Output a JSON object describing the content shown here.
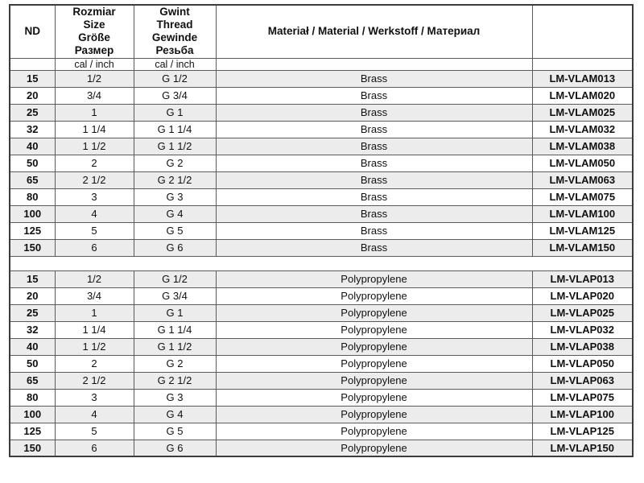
{
  "table": {
    "headers": {
      "nd": "ND",
      "size": "Rozmiar\nSize\nGröße\nРазмер",
      "thread": "Gwint\nThread\nGewinde\nРезьба",
      "material": "Materiał / Material / Werkstoff / Материал",
      "code": ""
    },
    "subheader": {
      "nd_unit": "",
      "size_unit": "cal / inch",
      "thread_unit": "cal / inch",
      "material_unit": "",
      "code_unit": ""
    },
    "sections": [
      {
        "name": "brass",
        "rows": [
          {
            "nd": "15",
            "size": "1/2",
            "thread": "G 1/2",
            "material": "Brass",
            "code": "LM-VLAM013"
          },
          {
            "nd": "20",
            "size": "3/4",
            "thread": "G 3/4",
            "material": "Brass",
            "code": "LM-VLAM020"
          },
          {
            "nd": "25",
            "size": "1",
            "thread": "G 1",
            "material": "Brass",
            "code": "LM-VLAM025"
          },
          {
            "nd": "32",
            "size": "1 1/4",
            "thread": "G 1 1/4",
            "material": "Brass",
            "code": "LM-VLAM032"
          },
          {
            "nd": "40",
            "size": "1 1/2",
            "thread": "G 1 1/2",
            "material": "Brass",
            "code": "LM-VLAM038"
          },
          {
            "nd": "50",
            "size": "2",
            "thread": "G 2",
            "material": "Brass",
            "code": "LM-VLAM050"
          },
          {
            "nd": "65",
            "size": "2 1/2",
            "thread": "G 2 1/2",
            "material": "Brass",
            "code": "LM-VLAM063"
          },
          {
            "nd": "80",
            "size": "3",
            "thread": "G 3",
            "material": "Brass",
            "code": "LM-VLAM075"
          },
          {
            "nd": "100",
            "size": "4",
            "thread": "G 4",
            "material": "Brass",
            "code": "LM-VLAM100"
          },
          {
            "nd": "125",
            "size": "5",
            "thread": "G 5",
            "material": "Brass",
            "code": "LM-VLAM125"
          },
          {
            "nd": "150",
            "size": "6",
            "thread": "G 6",
            "material": "Brass",
            "code": "LM-VLAM150"
          }
        ]
      },
      {
        "name": "polypropylene",
        "rows": [
          {
            "nd": "15",
            "size": "1/2",
            "thread": "G 1/2",
            "material": "Polypropylene",
            "code": "LM-VLAP013"
          },
          {
            "nd": "20",
            "size": "3/4",
            "thread": "G 3/4",
            "material": "Polypropylene",
            "code": "LM-VLAP020"
          },
          {
            "nd": "25",
            "size": "1",
            "thread": "G 1",
            "material": "Polypropylene",
            "code": "LM-VLAP025"
          },
          {
            "nd": "32",
            "size": "1 1/4",
            "thread": "G 1 1/4",
            "material": "Polypropylene",
            "code": "LM-VLAP032"
          },
          {
            "nd": "40",
            "size": "1 1/2",
            "thread": "G 1 1/2",
            "material": "Polypropylene",
            "code": "LM-VLAP038"
          },
          {
            "nd": "50",
            "size": "2",
            "thread": "G 2",
            "material": "Polypropylene",
            "code": "LM-VLAP050"
          },
          {
            "nd": "65",
            "size": "2 1/2",
            "thread": "G 2 1/2",
            "material": "Polypropylene",
            "code": "LM-VLAP063"
          },
          {
            "nd": "80",
            "size": "3",
            "thread": "G 3",
            "material": "Polypropylene",
            "code": "LM-VLAP075"
          },
          {
            "nd": "100",
            "size": "4",
            "thread": "G 4",
            "material": "Polypropylene",
            "code": "LM-VLAP100"
          },
          {
            "nd": "125",
            "size": "5",
            "thread": "G 5",
            "material": "Polypropylene",
            "code": "LM-VLAP125"
          },
          {
            "nd": "150",
            "size": "6",
            "thread": "G 6",
            "material": "Polypropylene",
            "code": "LM-VLAP150"
          }
        ]
      }
    ]
  },
  "colors": {
    "row_alt_background": "#ececec",
    "row_background": "#ffffff",
    "border_inner": "#5a5a5a",
    "border_outer": "#3c3c3c",
    "text": "#111111"
  }
}
